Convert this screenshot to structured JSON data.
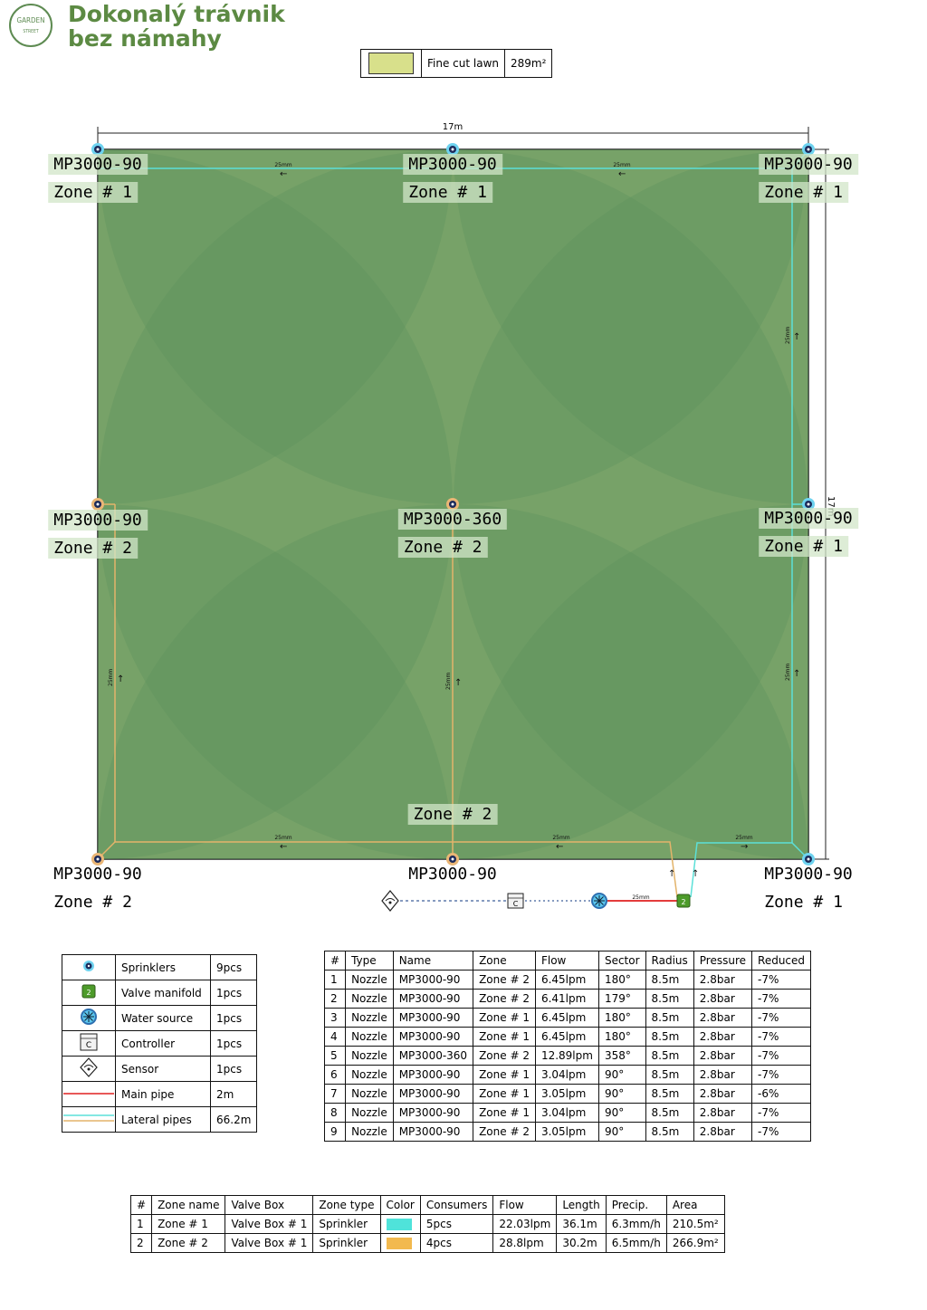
{
  "header": {
    "logo_line1": "GARDEN",
    "logo_line2": "STREET",
    "title_line1": "Dokonalý trávnik",
    "title_line2": "bez námahy"
  },
  "area_legend": {
    "label": "Fine cut lawn",
    "value": "289m²",
    "swatch_color": "#d8e08b"
  },
  "plan": {
    "width_label": "17m",
    "height_label": "17m",
    "lawn_color": "#9aba75",
    "coverage_color": "#5b8f5c",
    "zone1_pipe_color": "#5ce0d8",
    "zone2_pipe_color": "#e3b36a",
    "main_pipe_color": "#e02020",
    "pipe_size_label": "25mm",
    "sprinklers": [
      {
        "model": "MP3000-90",
        "zone": "Zone # 1"
      },
      {
        "model": "MP3000-90",
        "zone": "Zone # 1"
      },
      {
        "model": "MP3000-90",
        "zone": "Zone # 1"
      },
      {
        "model": "MP3000-90",
        "zone": "Zone # 2"
      },
      {
        "model": "MP3000-360",
        "zone": "Zone # 2"
      },
      {
        "model": "MP3000-90",
        "zone": "Zone # 1"
      },
      {
        "model": "MP3000-90",
        "zone": "Zone # 2"
      },
      {
        "model": "MP3000-90",
        "zone": ""
      },
      {
        "model": "MP3000-90",
        "zone": "Zone # 1"
      }
    ],
    "center_zone_label": "Zone # 2",
    "controller_symbol": "C",
    "manifold_symbol": "2"
  },
  "legend": {
    "rows": [
      {
        "icon": "sprinkler-icon",
        "label": "Sprinklers",
        "count": "9pcs"
      },
      {
        "icon": "valve-manifold-icon",
        "label": "Valve manifold",
        "count": "1pcs"
      },
      {
        "icon": "water-source-icon",
        "label": "Water source",
        "count": "1pcs"
      },
      {
        "icon": "controller-icon",
        "label": "Controller",
        "count": "1pcs"
      },
      {
        "icon": "sensor-icon",
        "label": "Sensor",
        "count": "1pcs"
      },
      {
        "icon": "main-pipe-icon",
        "label": "Main pipe",
        "count": "2m"
      },
      {
        "icon": "lateral-pipes-icon",
        "label": "Lateral pipes",
        "count": "66.2m"
      }
    ]
  },
  "nozzle_table": {
    "headers": [
      "#",
      "Type",
      "Name",
      "Zone",
      "Flow",
      "Sector",
      "Radius",
      "Pressure",
      "Reduced"
    ],
    "rows": [
      [
        "1",
        "Nozzle",
        "MP3000-90",
        "Zone # 2",
        "6.45lpm",
        "180°",
        "8.5m",
        "2.8bar",
        "-7%"
      ],
      [
        "2",
        "Nozzle",
        "MP3000-90",
        "Zone # 2",
        "6.41lpm",
        "179°",
        "8.5m",
        "2.8bar",
        "-7%"
      ],
      [
        "3",
        "Nozzle",
        "MP3000-90",
        "Zone # 1",
        "6.45lpm",
        "180°",
        "8.5m",
        "2.8bar",
        "-7%"
      ],
      [
        "4",
        "Nozzle",
        "MP3000-90",
        "Zone # 1",
        "6.45lpm",
        "180°",
        "8.5m",
        "2.8bar",
        "-7%"
      ],
      [
        "5",
        "Nozzle",
        "MP3000-360",
        "Zone # 2",
        "12.89lpm",
        "358°",
        "8.5m",
        "2.8bar",
        "-7%"
      ],
      [
        "6",
        "Nozzle",
        "MP3000-90",
        "Zone # 1",
        "3.04lpm",
        "90°",
        "8.5m",
        "2.8bar",
        "-7%"
      ],
      [
        "7",
        "Nozzle",
        "MP3000-90",
        "Zone # 1",
        "3.05lpm",
        "90°",
        "8.5m",
        "2.8bar",
        "-6%"
      ],
      [
        "8",
        "Nozzle",
        "MP3000-90",
        "Zone # 1",
        "3.04lpm",
        "90°",
        "8.5m",
        "2.8bar",
        "-7%"
      ],
      [
        "9",
        "Nozzle",
        "MP3000-90",
        "Zone # 2",
        "3.05lpm",
        "90°",
        "8.5m",
        "2.8bar",
        "-7%"
      ]
    ]
  },
  "zone_table": {
    "headers": [
      "#",
      "Zone name",
      "Valve Box",
      "Zone type",
      "Color",
      "Consumers",
      "Flow",
      "Length",
      "Precip.",
      "Area"
    ],
    "rows": [
      [
        "1",
        "Zone # 1",
        "Valve Box # 1",
        "Sprinkler",
        "#4fe3da",
        "5pcs",
        "22.03lpm",
        "36.1m",
        "6.3mm/h",
        "210.5m²"
      ],
      [
        "2",
        "Zone # 2",
        "Valve Box # 1",
        "Sprinkler",
        "#f2b94e",
        "4pcs",
        "28.8lpm",
        "30.2m",
        "6.5mm/h",
        "266.9m²"
      ]
    ]
  }
}
